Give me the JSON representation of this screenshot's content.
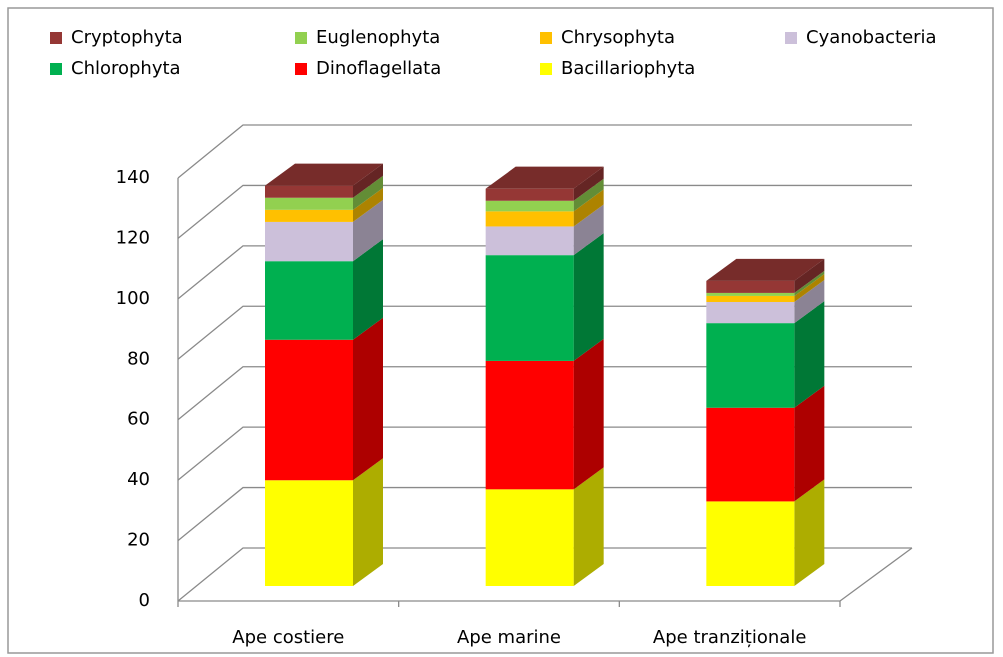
{
  "chart_data": {
    "type": "bar3d_stacked",
    "categories": [
      "Ape costiere",
      "Ape marine",
      "Ape tranziționale"
    ],
    "series": [
      {
        "name": "Bacillariophyta",
        "color": "#ffff00",
        "values": [
          35,
          32,
          28
        ]
      },
      {
        "name": "Dinoflagellata",
        "color": "#ff0000",
        "values": [
          46.5,
          42.5,
          31
        ]
      },
      {
        "name": "Chlorophyta",
        "color": "#00b050",
        "values": [
          26,
          35,
          28
        ]
      },
      {
        "name": "Cyanobacteria",
        "color": "#ccc0da",
        "values": [
          13,
          9.5,
          7
        ]
      },
      {
        "name": "Chrysophyta",
        "color": "#ffc000",
        "values": [
          4,
          5,
          2
        ]
      },
      {
        "name": "Euglenophyta",
        "color": "#92d050",
        "values": [
          4,
          3.5,
          1
        ]
      },
      {
        "name": "Cryptophyta",
        "color": "#953735",
        "values": [
          4,
          4,
          4
        ]
      }
    ],
    "ylim": [
      0,
      140
    ],
    "yticks": [
      0,
      20,
      40,
      60,
      80,
      100,
      120,
      140
    ],
    "grid": true,
    "legend": "top"
  }
}
